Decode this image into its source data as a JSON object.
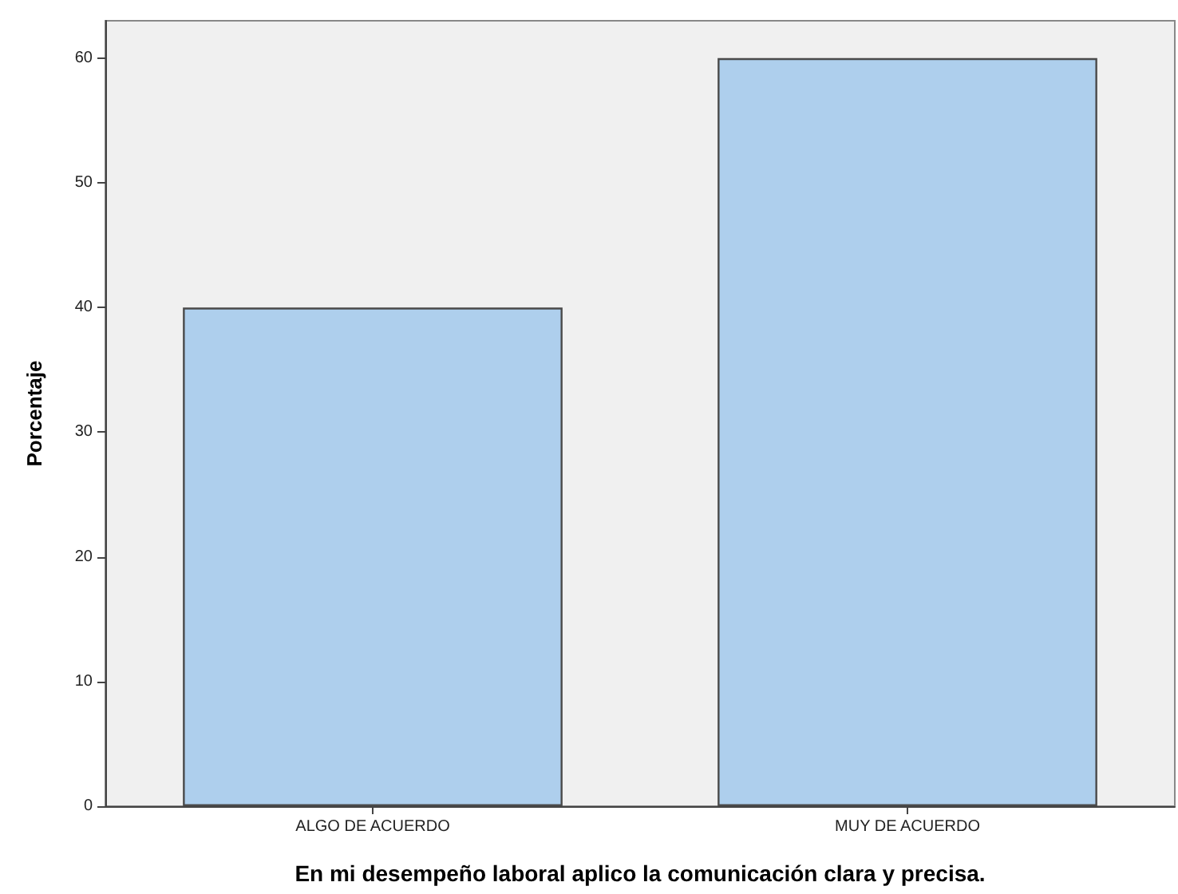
{
  "chart_data": {
    "type": "bar",
    "xlabel": "En mi desempeño laboral aplico la comunicación clara y precisa.",
    "ylabel": "Porcentaje",
    "categories": [
      "ALGO DE ACUERDO",
      "MUY DE ACUERDO"
    ],
    "values": [
      40,
      60
    ],
    "color": "#aecfed",
    "ylim": [
      0,
      63
    ],
    "yticks": [
      0,
      10,
      20,
      30,
      40,
      50,
      60
    ],
    "grid": false
  }
}
